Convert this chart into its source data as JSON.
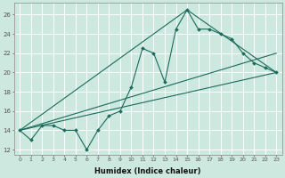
{
  "xlabel": "Humidex (Indice chaleur)",
  "background_color": "#cce8df",
  "grid_color": "#ffffff",
  "line_color": "#1a6b5a",
  "xlim": [
    -0.5,
    23.5
  ],
  "ylim": [
    11.5,
    27.2
  ],
  "xticks": [
    0,
    1,
    2,
    3,
    4,
    5,
    6,
    7,
    8,
    9,
    10,
    11,
    12,
    13,
    14,
    15,
    16,
    17,
    18,
    19,
    20,
    21,
    22,
    23
  ],
  "yticks": [
    12,
    14,
    16,
    18,
    20,
    22,
    24,
    26
  ],
  "series1_x": [
    0,
    1,
    2,
    3,
    4,
    5,
    6,
    7,
    8,
    9,
    10,
    11,
    12,
    13,
    14,
    15,
    16,
    17,
    18,
    19,
    20,
    21,
    22,
    23
  ],
  "series1_y": [
    14.0,
    13.0,
    14.5,
    14.5,
    14.0,
    14.0,
    12.0,
    14.0,
    15.5,
    16.0,
    18.5,
    22.5,
    22.0,
    19.0,
    24.5,
    26.5,
    24.5,
    24.5,
    24.0,
    23.5,
    22.0,
    21.0,
    20.5,
    20.0
  ],
  "trend1_x": [
    0,
    23
  ],
  "trend1_y": [
    14.0,
    20.0
  ],
  "trend2_x": [
    0,
    15,
    23
  ],
  "trend2_y": [
    14.0,
    26.5,
    20.0
  ],
  "trend3_x": [
    0,
    23
  ],
  "trend3_y": [
    14.0,
    22.0
  ]
}
